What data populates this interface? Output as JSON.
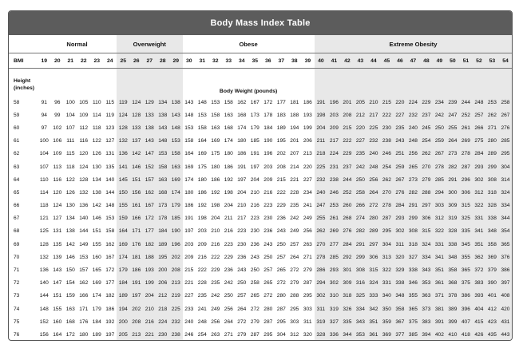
{
  "title": "Body Mass Index Table",
  "categories": [
    {
      "label": "Normal",
      "start": 0,
      "span": 6,
      "shaded": false
    },
    {
      "label": "Overweight",
      "start": 6,
      "span": 5,
      "shaded": true
    },
    {
      "label": "Obese",
      "start": 11,
      "span": 10,
      "shaded": false
    },
    {
      "label": "Extreme Obesity",
      "start": 21,
      "span": 15,
      "shaded": true
    }
  ],
  "bmi_label": "BMI",
  "bmi_values": [
    "19",
    "20",
    "21",
    "22",
    "23",
    "24",
    "25",
    "26",
    "27",
    "28",
    "29",
    "30",
    "31",
    "32",
    "33",
    "34",
    "35",
    "36",
    "37",
    "38",
    "39",
    "40",
    "41",
    "42",
    "43",
    "44",
    "45",
    "46",
    "47",
    "48",
    "49",
    "50",
    "51",
    "52",
    "53",
    "54"
  ],
  "height_label_line1": "Height",
  "height_label_line2": "(inches)",
  "weight_label": "Body Weight (pounds)",
  "rows": [
    {
      "height": "58",
      "weights": [
        91,
        96,
        100,
        105,
        110,
        115,
        119,
        124,
        129,
        134,
        138,
        143,
        148,
        153,
        158,
        162,
        167,
        172,
        177,
        181,
        186,
        191,
        196,
        201,
        205,
        210,
        215,
        220,
        224,
        229,
        234,
        239,
        244,
        248,
        253,
        258
      ]
    },
    {
      "height": "59",
      "weights": [
        94,
        99,
        104,
        109,
        114,
        119,
        124,
        128,
        133,
        138,
        143,
        148,
        153,
        158,
        163,
        168,
        173,
        178,
        183,
        188,
        193,
        198,
        203,
        208,
        212,
        217,
        222,
        227,
        232,
        237,
        242,
        247,
        252,
        257,
        262,
        267
      ]
    },
    {
      "height": "60",
      "weights": [
        97,
        102,
        107,
        112,
        118,
        123,
        128,
        133,
        138,
        143,
        148,
        153,
        158,
        163,
        168,
        174,
        179,
        184,
        189,
        194,
        199,
        204,
        209,
        215,
        220,
        225,
        230,
        235,
        240,
        245,
        250,
        255,
        261,
        266,
        271,
        276
      ]
    },
    {
      "height": "61",
      "weights": [
        100,
        106,
        111,
        116,
        122,
        127,
        132,
        137,
        143,
        148,
        153,
        158,
        164,
        169,
        174,
        180,
        185,
        190,
        195,
        201,
        206,
        211,
        217,
        222,
        227,
        232,
        238,
        243,
        248,
        254,
        259,
        264,
        269,
        275,
        280,
        285
      ]
    },
    {
      "height": "62",
      "weights": [
        104,
        109,
        115,
        120,
        126,
        131,
        136,
        142,
        147,
        153,
        158,
        164,
        169,
        175,
        180,
        186,
        191,
        196,
        202,
        207,
        213,
        218,
        224,
        229,
        235,
        240,
        246,
        251,
        256,
        262,
        267,
        273,
        278,
        284,
        289,
        295
      ]
    },
    {
      "height": "63",
      "weights": [
        107,
        113,
        118,
        124,
        130,
        135,
        141,
        146,
        152,
        158,
        163,
        169,
        175,
        180,
        186,
        191,
        197,
        203,
        208,
        214,
        220,
        225,
        231,
        237,
        242,
        248,
        254,
        259,
        265,
        270,
        278,
        282,
        287,
        293,
        299,
        304
      ]
    },
    {
      "height": "64",
      "weights": [
        110,
        116,
        122,
        128,
        134,
        140,
        145,
        151,
        157,
        163,
        169,
        174,
        180,
        186,
        192,
        197,
        204,
        209,
        215,
        221,
        227,
        232,
        238,
        244,
        250,
        256,
        262,
        267,
        273,
        279,
        285,
        291,
        296,
        302,
        308,
        314
      ]
    },
    {
      "height": "65",
      "weights": [
        114,
        120,
        126,
        132,
        138,
        144,
        150,
        156,
        162,
        168,
        174,
        180,
        186,
        192,
        198,
        204,
        210,
        216,
        222,
        228,
        234,
        240,
        246,
        252,
        258,
        264,
        270,
        276,
        282,
        288,
        294,
        300,
        306,
        312,
        318,
        324
      ]
    },
    {
      "height": "66",
      "weights": [
        118,
        124,
        130,
        136,
        142,
        148,
        155,
        161,
        167,
        173,
        179,
        186,
        192,
        198,
        204,
        210,
        216,
        223,
        229,
        235,
        241,
        247,
        253,
        260,
        266,
        272,
        278,
        284,
        291,
        297,
        303,
        309,
        315,
        322,
        328,
        334
      ]
    },
    {
      "height": "67",
      "weights": [
        121,
        127,
        134,
        140,
        146,
        153,
        159,
        166,
        172,
        178,
        185,
        191,
        198,
        204,
        211,
        217,
        223,
        230,
        236,
        242,
        249,
        255,
        261,
        268,
        274,
        280,
        287,
        293,
        299,
        306,
        312,
        319,
        325,
        331,
        338,
        344
      ]
    },
    {
      "height": "68",
      "weights": [
        125,
        131,
        138,
        144,
        151,
        158,
        164,
        171,
        177,
        184,
        190,
        197,
        203,
        210,
        216,
        223,
        230,
        236,
        243,
        249,
        256,
        262,
        269,
        276,
        282,
        289,
        295,
        302,
        308,
        315,
        322,
        328,
        335,
        341,
        348,
        354
      ]
    },
    {
      "height": "69",
      "weights": [
        128,
        135,
        142,
        149,
        155,
        162,
        169,
        176,
        182,
        189,
        196,
        203,
        209,
        216,
        223,
        230,
        236,
        243,
        250,
        257,
        263,
        270,
        277,
        284,
        291,
        297,
        304,
        311,
        318,
        324,
        331,
        338,
        345,
        351,
        358,
        365
      ]
    },
    {
      "height": "70",
      "weights": [
        132,
        139,
        146,
        153,
        160,
        167,
        174,
        181,
        188,
        195,
        202,
        209,
        216,
        222,
        229,
        236,
        243,
        250,
        257,
        264,
        271,
        278,
        285,
        292,
        299,
        306,
        313,
        320,
        327,
        334,
        341,
        348,
        355,
        362,
        369,
        376
      ]
    },
    {
      "height": "71",
      "weights": [
        136,
        143,
        150,
        157,
        165,
        172,
        179,
        186,
        193,
        200,
        208,
        215,
        222,
        229,
        236,
        243,
        250,
        257,
        265,
        272,
        279,
        286,
        293,
        301,
        308,
        315,
        322,
        329,
        338,
        343,
        351,
        358,
        365,
        372,
        379,
        386
      ]
    },
    {
      "height": "72",
      "weights": [
        140,
        147,
        154,
        162,
        169,
        177,
        184,
        191,
        199,
        206,
        213,
        221,
        228,
        235,
        242,
        250,
        258,
        265,
        272,
        279,
        287,
        294,
        302,
        309,
        316,
        324,
        331,
        338,
        346,
        353,
        361,
        368,
        375,
        383,
        390,
        397
      ]
    },
    {
      "height": "73",
      "weights": [
        144,
        151,
        159,
        166,
        174,
        182,
        189,
        197,
        204,
        212,
        219,
        227,
        235,
        242,
        250,
        257,
        265,
        272,
        280,
        288,
        295,
        302,
        310,
        318,
        325,
        333,
        340,
        348,
        355,
        363,
        371,
        378,
        386,
        393,
        401,
        408
      ]
    },
    {
      "height": "74",
      "weights": [
        148,
        155,
        163,
        171,
        179,
        186,
        194,
        202,
        210,
        218,
        225,
        233,
        241,
        249,
        256,
        264,
        272,
        280,
        287,
        295,
        303,
        311,
        319,
        326,
        334,
        342,
        350,
        358,
        365,
        373,
        381,
        389,
        396,
        404,
        412,
        420
      ]
    },
    {
      "height": "75",
      "weights": [
        152,
        160,
        168,
        176,
        184,
        192,
        200,
        208,
        216,
        224,
        232,
        240,
        248,
        256,
        264,
        272,
        279,
        287,
        295,
        303,
        311,
        319,
        327,
        335,
        343,
        351,
        359,
        367,
        375,
        383,
        391,
        399,
        407,
        415,
        423,
        431
      ]
    },
    {
      "height": "76",
      "weights": [
        156,
        164,
        172,
        180,
        189,
        197,
        205,
        213,
        221,
        230,
        238,
        246,
        254,
        263,
        271,
        279,
        287,
        295,
        304,
        312,
        320,
        328,
        336,
        344,
        353,
        361,
        369,
        377,
        385,
        394,
        402,
        410,
        418,
        426,
        435,
        443
      ]
    }
  ],
  "colors": {
    "title_bar": "#5c5c5c",
    "shade": "#e8e8e8",
    "border": "#555555"
  }
}
